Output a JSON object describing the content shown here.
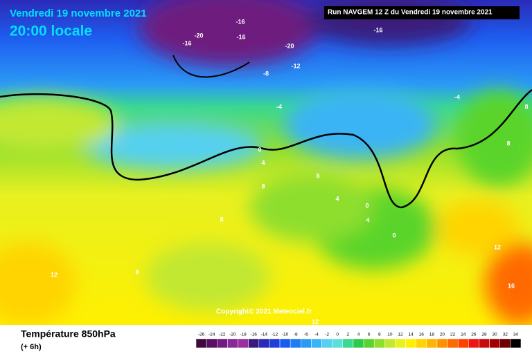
{
  "header": {
    "date": "Vendredi 19 novembre 2021",
    "time": "20:00 locale",
    "run": "Run NAVGEM 12 Z du Vendredi 19 novembre 2021"
  },
  "map": {
    "contour_labels": [
      -16,
      -16,
      -20,
      -16,
      -20,
      -12,
      -16,
      -8,
      -4,
      -4,
      0,
      4,
      8,
      8,
      4,
      0,
      4,
      0,
      8,
      8,
      12,
      8,
      8,
      12,
      16,
      12
    ],
    "copyright": "Copyright© 2021 Meteociel.fr"
  },
  "footer": {
    "title": "Température 850hPa",
    "subtitle": "(+ 6h)"
  },
  "colorbar": {
    "values": [
      -26,
      -24,
      -22,
      -20,
      -18,
      -16,
      -14,
      -12,
      -10,
      -8,
      -6,
      -4,
      -2,
      0,
      2,
      4,
      6,
      8,
      10,
      12,
      14,
      16,
      18,
      20,
      22,
      24,
      26,
      28,
      30,
      32,
      34
    ],
    "colors": [
      "#3d0a3d",
      "#5a1060",
      "#6e1d7e",
      "#862a94",
      "#9a2f9e",
      "#3b1a7a",
      "#2a2ab8",
      "#1e3ed8",
      "#1a5cf0",
      "#1e7cf5",
      "#2a9af5",
      "#3bb4f5",
      "#55d0f0",
      "#5ae0d8",
      "#3ad890",
      "#2ecb4a",
      "#5ad42c",
      "#8ede2e",
      "#c2e830",
      "#e8f020",
      "#fff000",
      "#ffd400",
      "#ffb400",
      "#ff9000",
      "#ff6a00",
      "#ff4000",
      "#f01414",
      "#c80a0a",
      "#a00000",
      "#700000",
      "#000000"
    ]
  }
}
